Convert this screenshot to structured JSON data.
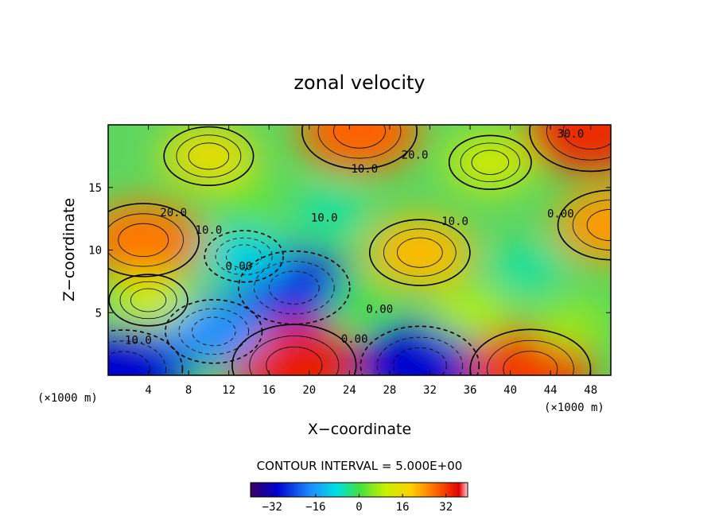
{
  "chart_data": {
    "type": "heatmap",
    "title": "zonal velocity",
    "xlabel": "X−coordinate",
    "ylabel": "Z−coordinate",
    "x_unit_left": "(×1000 m)",
    "x_unit_right": "(×1000 m)",
    "xlim": [
      0,
      50
    ],
    "ylim": [
      0,
      20
    ],
    "x_ticks": [
      4,
      8,
      12,
      16,
      20,
      24,
      28,
      32,
      36,
      40,
      44,
      48
    ],
    "y_ticks": [
      5,
      10,
      15
    ],
    "contour_interval_text": "CONTOUR INTERVAL = 5.000E+00",
    "colorbar": {
      "range": [
        -40,
        40
      ],
      "ticks": [
        -32,
        -16,
        0,
        16,
        32
      ]
    },
    "cells": [
      {
        "x": 3.5,
        "z": 10.8,
        "value": 28
      },
      {
        "x": 18.5,
        "z": 7.0,
        "value": -28
      },
      {
        "x": 31.0,
        "z": 9.8,
        "value": 22
      },
      {
        "x": 41.5,
        "z": 8.5,
        "value": -5
      },
      {
        "x": 18.5,
        "z": 0.8,
        "value": 35
      },
      {
        "x": 31.0,
        "z": 0.8,
        "value": -32
      },
      {
        "x": 42.0,
        "z": 0.5,
        "value": 33
      },
      {
        "x": 1.5,
        "z": 0.5,
        "value": -32
      },
      {
        "x": 25.0,
        "z": 19.5,
        "value": 30
      },
      {
        "x": 48.0,
        "z": 19.5,
        "value": 34
      },
      {
        "x": 10.5,
        "z": 3.5,
        "value": -20
      },
      {
        "x": 13.5,
        "z": 9.5,
        "value": -10
      },
      {
        "x": 22.0,
        "z": 13.0,
        "value": -5
      },
      {
        "x": 14.0,
        "z": 14.0,
        "value": 2
      },
      {
        "x": 50.0,
        "z": 12.0,
        "value": 25
      },
      {
        "x": 4.0,
        "z": 6.0,
        "value": 10
      },
      {
        "x": 36.0,
        "z": 5.0,
        "value": 8
      },
      {
        "x": 46.0,
        "z": 4.0,
        "value": 6
      },
      {
        "x": 25.0,
        "z": 6.0,
        "value": 0
      },
      {
        "x": 10.0,
        "z": 17.5,
        "value": 16
      },
      {
        "x": 38.0,
        "z": 17.0,
        "value": 12
      }
    ],
    "contour_labels": [
      {
        "text": "30.0",
        "x": 46.0,
        "z": 19.0
      },
      {
        "text": "20.0",
        "x": 30.5,
        "z": 17.3
      },
      {
        "text": "10.0",
        "x": 25.5,
        "z": 16.2
      },
      {
        "text": "20.0",
        "x": 6.5,
        "z": 12.7
      },
      {
        "text": "10.0",
        "x": 10.0,
        "z": 11.3
      },
      {
        "text": "10.0",
        "x": 21.5,
        "z": 12.3
      },
      {
        "text": "10.0",
        "x": 34.5,
        "z": 12.0
      },
      {
        "text": "0.00",
        "x": 45.0,
        "z": 12.6
      },
      {
        "text": "0.00",
        "x": 13.0,
        "z": 8.4
      },
      {
        "text": "0.00",
        "x": 27.0,
        "z": 5.0
      },
      {
        "text": "0.00",
        "x": 24.5,
        "z": 2.6
      },
      {
        "text": "10.0",
        "x": 3.0,
        "z": 2.5
      }
    ]
  }
}
